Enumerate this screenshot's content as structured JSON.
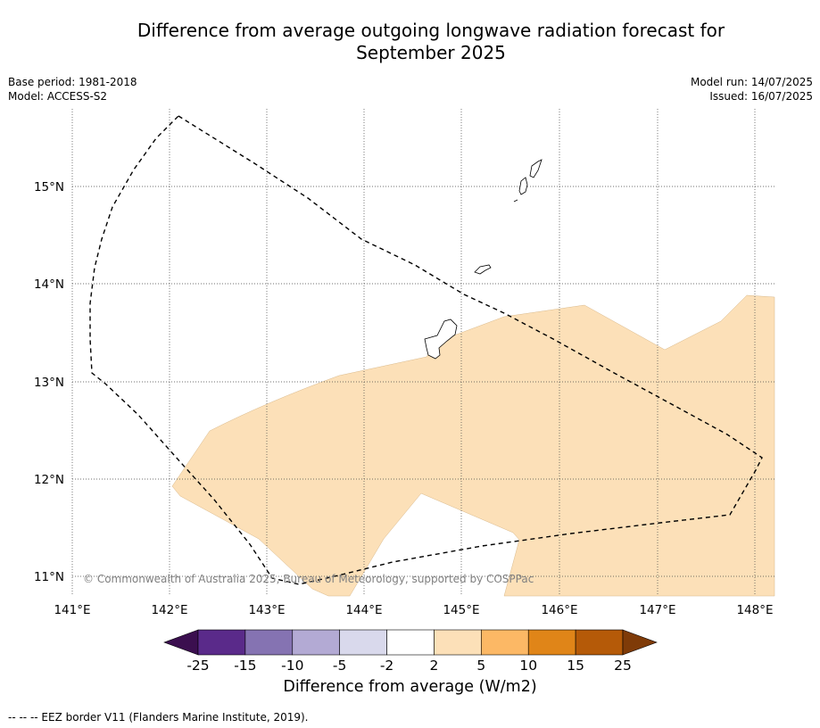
{
  "title_line1": "Difference from average outgoing longwave radiation forecast for",
  "title_line2": "September 2025",
  "base_period": "Base period: 1981-2018",
  "model": "Model: ACCESS-S2",
  "model_run": "Model run: 14/07/2025",
  "issued": "Issued: 16/07/2025",
  "copyright": "© Commonwealth of Australia 2025, Bureau of Meteorology, supported by COSPPac",
  "lon_labels": [
    "141°E",
    "142°E",
    "143°E",
    "144°E",
    "145°E",
    "146°E",
    "147°E",
    "148°E"
  ],
  "lat_labels": [
    "15°N",
    "14°N",
    "13°N",
    "12°N",
    "11°N"
  ],
  "colorbar": {
    "ticks": [
      "-25",
      "-15",
      "-10",
      "-5",
      "-2",
      "2",
      "5",
      "10",
      "15",
      "25"
    ],
    "colors": [
      "#3b0f4f",
      "#5a2a8a",
      "#8573b2",
      "#b3aad4",
      "#d9d9ec",
      "#ffffff",
      "#fce0b8",
      "#fcb865",
      "#e08518",
      "#b55a08",
      "#7f3b08"
    ],
    "label": "Difference from average (W/m2)"
  },
  "map_fill_color": "#fce0b8",
  "footer": "--  --  -- EEZ border V11 (Flanders Marine Institute, 2019)."
}
